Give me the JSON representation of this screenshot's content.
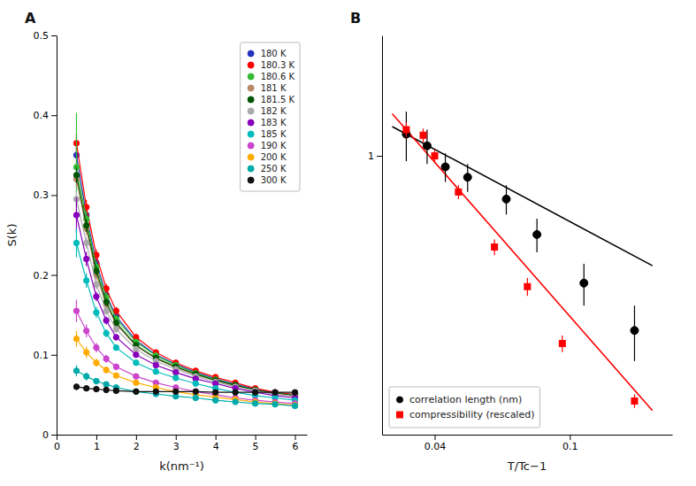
{
  "chart_data": [
    {
      "type": "line",
      "title": "A",
      "xlabel": "k(nm⁻¹)",
      "ylabel": "S(k)",
      "x": [
        0.5,
        0.75,
        1.0,
        1.25,
        1.5,
        2.0,
        2.5,
        3.0,
        3.5,
        4.0,
        4.5,
        5.0,
        5.5,
        6.0
      ],
      "xlim": [
        0,
        6.3
      ],
      "ylim": [
        0,
        0.5
      ],
      "xticks": [
        0,
        1,
        2,
        3,
        4,
        5,
        6
      ],
      "yticks": [
        0,
        0.1,
        0.2,
        0.3,
        0.4,
        0.5
      ],
      "legend": "upper right",
      "marker": "circle",
      "series": [
        {
          "name": "180 K",
          "color": "#2233bb",
          "values": [
            0.35,
            0.275,
            0.215,
            0.175,
            0.148,
            0.118,
            0.1,
            0.088,
            0.078,
            0.07,
            0.063,
            0.057,
            0.053,
            0.05
          ],
          "yerr": [
            0.012,
            0.008,
            0.006,
            0.005,
            0.004,
            0.003,
            0.003,
            0.002,
            0.002,
            0.002,
            0.002,
            0.002,
            0.002,
            0.002
          ]
        },
        {
          "name": "180.3 K",
          "color": "#ff0000",
          "values": [
            0.365,
            0.285,
            0.225,
            0.183,
            0.155,
            0.122,
            0.103,
            0.09,
            0.08,
            0.072,
            0.065,
            0.058,
            0.053,
            0.05
          ],
          "yerr": [
            0.012,
            0.009,
            0.007,
            0.006,
            0.005,
            0.004,
            0.003,
            0.003,
            0.002,
            0.002,
            0.002,
            0.002,
            0.002,
            0.002
          ]
        },
        {
          "name": "180.6 K",
          "color": "#33bb33",
          "values": [
            0.335,
            0.27,
            0.21,
            0.172,
            0.145,
            0.116,
            0.099,
            0.087,
            0.077,
            0.069,
            0.062,
            0.056,
            0.052,
            0.049
          ],
          "yerr": [
            0.068,
            0.01,
            0.007,
            0.006,
            0.005,
            0.004,
            0.003,
            0.003,
            0.002,
            0.002,
            0.002,
            0.002,
            0.002,
            0.002
          ]
        },
        {
          "name": "181 K",
          "color": "#bb8866",
          "values": [
            0.32,
            0.258,
            0.2,
            0.163,
            0.138,
            0.111,
            0.095,
            0.084,
            0.075,
            0.068,
            0.061,
            0.055,
            0.051,
            0.048
          ],
          "yerr": [
            0.01,
            0.008,
            0.006,
            0.005,
            0.004,
            0.003,
            0.003,
            0.002,
            0.002,
            0.002,
            0.002,
            0.002,
            0.002,
            0.002
          ]
        },
        {
          "name": "181.5 K",
          "color": "#005500",
          "values": [
            0.325,
            0.262,
            0.205,
            0.166,
            0.14,
            0.112,
            0.096,
            0.085,
            0.076,
            0.068,
            0.062,
            0.056,
            0.052,
            0.049
          ],
          "yerr": [
            0.01,
            0.008,
            0.006,
            0.005,
            0.004,
            0.003,
            0.003,
            0.002,
            0.002,
            0.002,
            0.002,
            0.002,
            0.002,
            0.002
          ]
        },
        {
          "name": "182 K",
          "color": "#aaaaaa",
          "values": [
            0.295,
            0.24,
            0.188,
            0.155,
            0.132,
            0.107,
            0.092,
            0.082,
            0.073,
            0.066,
            0.06,
            0.055,
            0.051,
            0.048
          ],
          "yerr": [
            0.01,
            0.007,
            0.006,
            0.005,
            0.004,
            0.003,
            0.003,
            0.002,
            0.002,
            0.002,
            0.002,
            0.002,
            0.002,
            0.002
          ]
        },
        {
          "name": "183 K",
          "color": "#8800bb",
          "values": [
            0.275,
            0.22,
            0.173,
            0.143,
            0.122,
            0.1,
            0.087,
            0.078,
            0.07,
            0.064,
            0.058,
            0.053,
            0.049,
            0.046
          ],
          "yerr": [
            0.022,
            0.009,
            0.006,
            0.005,
            0.004,
            0.003,
            0.002,
            0.002,
            0.002,
            0.002,
            0.002,
            0.002,
            0.002,
            0.002
          ]
        },
        {
          "name": "185 K",
          "color": "#00bbbb",
          "values": [
            0.24,
            0.193,
            0.153,
            0.127,
            0.109,
            0.09,
            0.079,
            0.071,
            0.064,
            0.058,
            0.053,
            0.049,
            0.046,
            0.043
          ],
          "yerr": [
            0.018,
            0.009,
            0.007,
            0.005,
            0.004,
            0.003,
            0.002,
            0.002,
            0.002,
            0.002,
            0.002,
            0.002,
            0.002,
            0.002
          ]
        },
        {
          "name": "190 K",
          "color": "#cc44cc",
          "values": [
            0.155,
            0.13,
            0.109,
            0.095,
            0.085,
            0.073,
            0.065,
            0.059,
            0.054,
            0.05,
            0.046,
            0.043,
            0.041,
            0.039
          ],
          "yerr": [
            0.014,
            0.008,
            0.006,
            0.005,
            0.004,
            0.003,
            0.002,
            0.002,
            0.002,
            0.002,
            0.002,
            0.002,
            0.002,
            0.002
          ]
        },
        {
          "name": "200 K",
          "color": "#ffaa00",
          "values": [
            0.12,
            0.103,
            0.09,
            0.081,
            0.074,
            0.065,
            0.059,
            0.054,
            0.05,
            0.047,
            0.044,
            0.041,
            0.039,
            0.037
          ],
          "yerr": [
            0.01,
            0.007,
            0.005,
            0.004,
            0.003,
            0.003,
            0.002,
            0.002,
            0.002,
            0.002,
            0.002,
            0.002,
            0.002,
            0.002
          ]
        },
        {
          "name": "250 K",
          "color": "#00aaaa",
          "values": [
            0.08,
            0.073,
            0.067,
            0.063,
            0.059,
            0.054,
            0.051,
            0.048,
            0.046,
            0.043,
            0.041,
            0.039,
            0.038,
            0.036
          ],
          "yerr": [
            0.007,
            0.005,
            0.004,
            0.003,
            0.003,
            0.002,
            0.002,
            0.002,
            0.002,
            0.002,
            0.002,
            0.002,
            0.002,
            0.002
          ]
        },
        {
          "name": "300 K",
          "color": "#111111",
          "values": [
            0.06,
            0.058,
            0.057,
            0.056,
            0.055,
            0.054,
            0.054,
            0.054,
            0.054,
            0.053,
            0.053,
            0.053,
            0.053,
            0.053
          ],
          "yerr": [
            0.004,
            0.003,
            0.003,
            0.002,
            0.002,
            0.002,
            0.002,
            0.002,
            0.002,
            0.002,
            0.002,
            0.002,
            0.002,
            0.002
          ]
        }
      ]
    },
    {
      "type": "scatter",
      "title": "B",
      "xlabel": "T/Tc−1",
      "log": true,
      "xlim": [
        0.028,
        0.2
      ],
      "ylim": [
        0.12,
        2.5
      ],
      "xticks": [
        0.04,
        0.1
      ],
      "yticks": [
        1
      ],
      "legend": "lower left",
      "series": [
        {
          "type": "line",
          "color": "black",
          "x": [
            0.03,
            0.175
          ],
          "values": [
            1.2494,
            0.4337
          ]
        },
        {
          "type": "line",
          "color": "red",
          "x": [
            0.03,
            0.175
          ],
          "values": [
            1.3783,
            0.1442
          ]
        },
        {
          "name": "correlation length (nm)",
          "color": "black",
          "marker": "circle",
          "x": [
            0.033,
            0.038,
            0.043,
            0.05,
            0.065,
            0.08,
            0.11,
            0.155
          ],
          "values": [
            1.18,
            1.08,
            0.92,
            0.85,
            0.72,
            0.55,
            0.38,
            0.265
          ],
          "yerr": [
            0.22,
            0.14,
            0.1,
            0.09,
            0.08,
            0.07,
            0.06,
            0.055
          ]
        },
        {
          "name": "compressibility (rescaled)",
          "color": "red",
          "marker": "square",
          "x": [
            0.033,
            0.037,
            0.04,
            0.047,
            0.06,
            0.075,
            0.095,
            0.155
          ],
          "values": [
            1.22,
            1.17,
            1.0,
            0.76,
            0.5,
            0.37,
            0.24,
            0.155
          ],
          "yerr": [
            0.07,
            0.06,
            0.05,
            0.04,
            0.03,
            0.025,
            0.015,
            0.008
          ]
        }
      ]
    }
  ]
}
